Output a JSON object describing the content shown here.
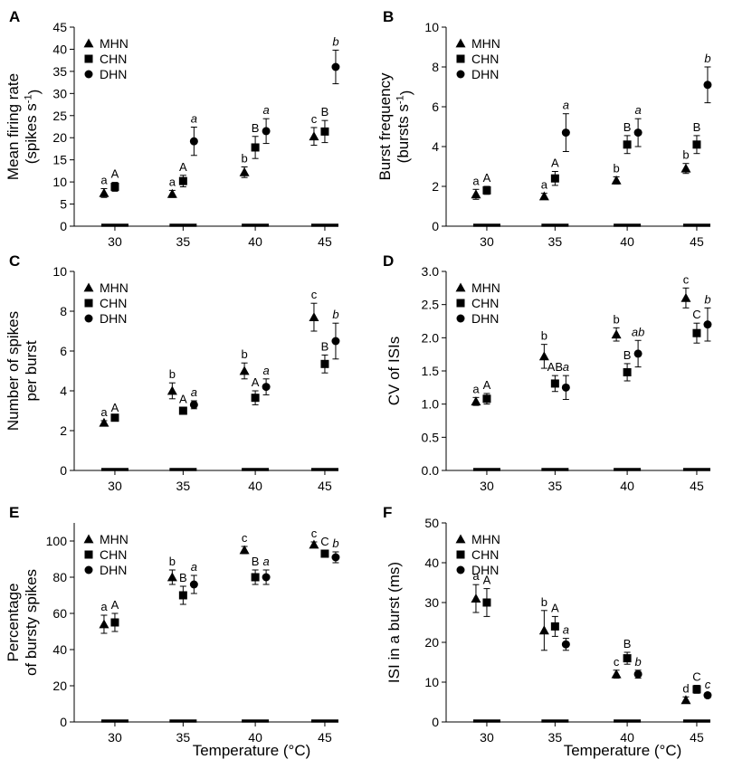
{
  "figure": {
    "x_axis_title": "Temperature (°C)"
  },
  "chart_data": [
    {
      "panel": "A",
      "type": "scatter",
      "ylabel_line1": "Mean firing rate",
      "ylabel_line2": "(spikes s",
      "ylabel_sup": "-1",
      "ylabel_close": ")",
      "categories": [
        "30",
        "35",
        "40",
        "45"
      ],
      "ylim": [
        0,
        45
      ],
      "yticks": [
        0,
        5,
        10,
        15,
        20,
        25,
        30,
        35,
        40,
        45
      ],
      "series": [
        {
          "name": "MHN",
          "marker": "triangle",
          "values": [
            7.5,
            7.3,
            12.2,
            20.3
          ],
          "errors": [
            1.0,
            0.8,
            1.2,
            2.0
          ],
          "letters": [
            "a",
            "a",
            "b",
            "c"
          ],
          "italic": false
        },
        {
          "name": "CHN",
          "marker": "square",
          "values": [
            8.9,
            10.2,
            17.8,
            21.4
          ],
          "errors": [
            1.0,
            1.3,
            2.5,
            2.5
          ],
          "letters": [
            "A",
            "A",
            "B",
            "B"
          ],
          "italic": false
        },
        {
          "name": "DHN",
          "marker": "circle",
          "values": [
            null,
            19.2,
            21.5,
            36.0
          ],
          "errors": [
            null,
            3.2,
            2.8,
            3.8
          ],
          "letters": [
            "",
            "a",
            "a",
            "b"
          ],
          "italic": true
        }
      ]
    },
    {
      "panel": "B",
      "type": "scatter",
      "ylabel_line1": "Burst frequency",
      "ylabel_line2": "(bursts s",
      "ylabel_sup": "-1",
      "ylabel_close": ")",
      "categories": [
        "30",
        "35",
        "40",
        "45"
      ],
      "ylim": [
        0,
        10
      ],
      "yticks": [
        0,
        2,
        4,
        6,
        8,
        10
      ],
      "series": [
        {
          "name": "MHN",
          "marker": "triangle",
          "values": [
            1.6,
            1.5,
            2.3,
            2.9
          ],
          "errors": [
            0.25,
            0.15,
            0.18,
            0.25
          ],
          "letters": [
            "a",
            "a",
            "b",
            "b"
          ],
          "italic": false
        },
        {
          "name": "CHN",
          "marker": "square",
          "values": [
            1.8,
            2.4,
            4.1,
            4.1
          ],
          "errors": [
            0.2,
            0.35,
            0.45,
            0.45
          ],
          "letters": [
            "A",
            "A",
            "B",
            "B"
          ],
          "italic": false
        },
        {
          "name": "DHN",
          "marker": "circle",
          "values": [
            null,
            4.7,
            4.7,
            7.1
          ],
          "errors": [
            null,
            0.95,
            0.7,
            0.9
          ],
          "letters": [
            "",
            "a",
            "a",
            "b"
          ],
          "italic": true
        }
      ]
    },
    {
      "panel": "C",
      "type": "scatter",
      "ylabel_line1": "Number of spikes",
      "ylabel_line2": "per burst",
      "ylabel_sup": "",
      "ylabel_close": "",
      "categories": [
        "30",
        "35",
        "40",
        "45"
      ],
      "ylim": [
        0,
        10
      ],
      "yticks": [
        0,
        2,
        4,
        6,
        8,
        10
      ],
      "series": [
        {
          "name": "MHN",
          "marker": "triangle",
          "values": [
            2.4,
            4.0,
            5.0,
            7.7
          ],
          "errors": [
            0.1,
            0.4,
            0.4,
            0.7
          ],
          "letters": [
            "a",
            "b",
            "b",
            "c"
          ],
          "italic": false
        },
        {
          "name": "CHN",
          "marker": "square",
          "values": [
            2.65,
            3.0,
            3.65,
            5.35
          ],
          "errors": [
            0.08,
            0.15,
            0.35,
            0.45
          ],
          "letters": [
            "A",
            "A",
            "A",
            "B"
          ],
          "italic": false
        },
        {
          "name": "DHN",
          "marker": "circle",
          "values": [
            null,
            3.3,
            4.2,
            6.5
          ],
          "errors": [
            null,
            0.2,
            0.4,
            0.9
          ],
          "letters": [
            "",
            "a",
            "a",
            "b"
          ],
          "italic": true
        }
      ]
    },
    {
      "panel": "D",
      "type": "scatter",
      "ylabel_line1": "CV of ISIs",
      "ylabel_line2": "",
      "ylabel_sup": "",
      "ylabel_close": "",
      "categories": [
        "30",
        "35",
        "40",
        "45"
      ],
      "ylim": [
        0,
        3
      ],
      "yticks": [
        "0.0",
        "0.5",
        "1.0",
        "1.5",
        "2.0",
        "2.5",
        "3.0"
      ],
      "ytick_values": [
        0,
        0.5,
        1.0,
        1.5,
        2.0,
        2.5,
        3.0
      ],
      "series": [
        {
          "name": "MHN",
          "marker": "triangle",
          "values": [
            1.04,
            1.72,
            2.05,
            2.6
          ],
          "errors": [
            0.06,
            0.18,
            0.1,
            0.15
          ],
          "letters": [
            "a",
            "b",
            "b",
            "c"
          ],
          "italic": false
        },
        {
          "name": "CHN",
          "marker": "square",
          "values": [
            1.08,
            1.31,
            1.48,
            2.07
          ],
          "errors": [
            0.08,
            0.12,
            0.13,
            0.15
          ],
          "letters": [
            "A",
            "AB",
            "B",
            "C"
          ],
          "italic": false
        },
        {
          "name": "DHN",
          "marker": "circle",
          "values": [
            null,
            1.25,
            1.76,
            2.2
          ],
          "errors": [
            null,
            0.18,
            0.2,
            0.25
          ],
          "letters": [
            "",
            "a",
            "ab",
            "b"
          ],
          "italic": true
        }
      ]
    },
    {
      "panel": "E",
      "type": "scatter",
      "ylabel_line1": "Percentage",
      "ylabel_line2": "of bursty spikes",
      "ylabel_sup": "",
      "ylabel_close": "",
      "categories": [
        "30",
        "35",
        "40",
        "45"
      ],
      "ylim": [
        0,
        110
      ],
      "yticks": [
        0,
        20,
        40,
        60,
        80,
        100
      ],
      "series": [
        {
          "name": "MHN",
          "marker": "triangle",
          "values": [
            54,
            80,
            95,
            98
          ],
          "errors": [
            5,
            4,
            2,
            1.5
          ],
          "letters": [
            "a",
            "b",
            "c",
            "c"
          ],
          "italic": false
        },
        {
          "name": "CHN",
          "marker": "square",
          "values": [
            55,
            70,
            80,
            93
          ],
          "errors": [
            5,
            5,
            4,
            2
          ],
          "letters": [
            "A",
            "B",
            "B",
            "C"
          ],
          "italic": false
        },
        {
          "name": "DHN",
          "marker": "circle",
          "values": [
            null,
            76,
            80,
            91
          ],
          "errors": [
            null,
            5,
            4,
            3
          ],
          "letters": [
            "",
            "a",
            "a",
            "b"
          ],
          "italic": true
        }
      ]
    },
    {
      "panel": "F",
      "type": "scatter",
      "ylabel_line1": "ISI in a burst (ms)",
      "ylabel_line2": "",
      "ylabel_sup": "",
      "ylabel_close": "",
      "categories": [
        "30",
        "35",
        "40",
        "45"
      ],
      "ylim": [
        0,
        50
      ],
      "yticks": [
        0,
        10,
        20,
        30,
        40,
        50
      ],
      "series": [
        {
          "name": "MHN",
          "marker": "triangle",
          "values": [
            31,
            23,
            12,
            5.5
          ],
          "errors": [
            3.5,
            5,
            1,
            0.8
          ],
          "letters": [
            "a",
            "b",
            "c",
            "d"
          ],
          "italic": false
        },
        {
          "name": "CHN",
          "marker": "square",
          "values": [
            30,
            24,
            16,
            8.2
          ],
          "errors": [
            3.5,
            2.5,
            1.5,
            1
          ],
          "letters": [
            "A",
            "A",
            "B",
            "C"
          ],
          "italic": false
        },
        {
          "name": "DHN",
          "marker": "circle",
          "values": [
            null,
            19.5,
            12,
            6.7
          ],
          "errors": [
            null,
            1.5,
            1,
            0.6
          ],
          "letters": [
            "",
            "a",
            "b",
            "c"
          ],
          "italic": true
        }
      ]
    }
  ]
}
